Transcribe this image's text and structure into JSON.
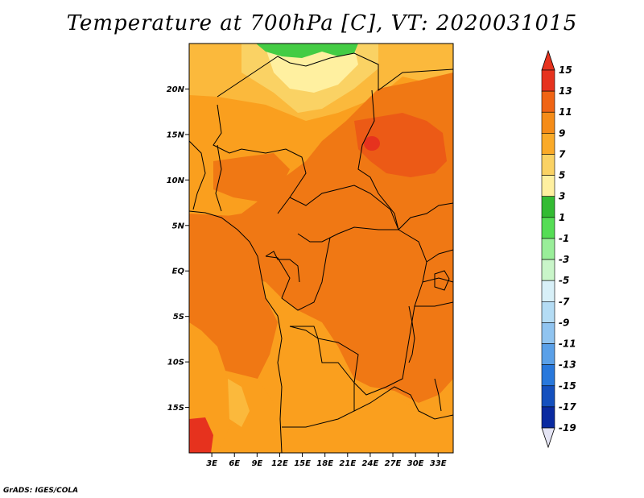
{
  "title": "Temperature at 700hPa [C], VT: 2020031015",
  "credit": "GrADS: IGES/COLA",
  "map": {
    "projection": "latlon",
    "lon_range": [
      0,
      35
    ],
    "lat_range": [
      -20,
      25
    ],
    "lat_labels": [
      "20N",
      "15N",
      "10N",
      "5N",
      "EQ",
      "5S",
      "10S",
      "15S"
    ],
    "lon_labels": [
      "3E",
      "6E",
      "9E",
      "12E",
      "15E",
      "18E",
      "21E",
      "24E",
      "27E",
      "30E",
      "33E"
    ],
    "dominant_field_color": "#f07814",
    "background_field_color": "#fa9f1e"
  },
  "colorbar": {
    "labels": [
      "15",
      "13",
      "11",
      "9",
      "7",
      "5",
      "3",
      "1",
      "-1",
      "-3",
      "-5",
      "-7",
      "-9",
      "-11",
      "-13",
      "-15",
      "-17",
      "-19"
    ],
    "colors": [
      "#e6321e",
      "#f06414",
      "#f58c18",
      "#faaa28",
      "#fad264",
      "#fff0a0",
      "#33bb33",
      "#55dd55",
      "#99ee99",
      "#c9f5c9",
      "#d8f0f8",
      "#b4dcf4",
      "#90c4f0",
      "#5aa0e8",
      "#2878dc",
      "#1450be",
      "#0a2aa0",
      "#06107a"
    ],
    "top_triangle_color": "#e6321e",
    "bottom_triangle_color": "#e4e4f4"
  }
}
